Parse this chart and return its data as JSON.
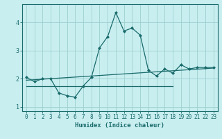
{
  "xlabel": "Humidex (Indice chaleur)",
  "bg_color": "#c8eef0",
  "grid_color": "#9ecfcf",
  "line_color": "#1a6b6b",
  "xlim": [
    -0.5,
    23.5
  ],
  "ylim": [
    0.85,
    4.65
  ],
  "xticks": [
    0,
    1,
    2,
    3,
    4,
    5,
    6,
    7,
    8,
    9,
    10,
    11,
    12,
    13,
    14,
    15,
    16,
    17,
    18,
    19,
    20,
    21,
    22,
    23
  ],
  "yticks": [
    1,
    2,
    3,
    4
  ],
  "line1_x": [
    0,
    1,
    2,
    3,
    4,
    5,
    6,
    7,
    8,
    9,
    10,
    11,
    12,
    13,
    14,
    15,
    16,
    17,
    18,
    19,
    20,
    21,
    22,
    23
  ],
  "line1_y": [
    2.05,
    1.9,
    2.0,
    2.0,
    1.5,
    1.4,
    1.35,
    1.75,
    2.05,
    3.1,
    3.5,
    4.35,
    3.7,
    3.8,
    3.55,
    2.3,
    2.1,
    2.35,
    2.2,
    2.5,
    2.35,
    2.4,
    2.4,
    2.4
  ],
  "line2_x": [
    0,
    18
  ],
  "line2_y": [
    1.75,
    1.75
  ],
  "line3_x": [
    0,
    23
  ],
  "line3_y": [
    1.95,
    2.38
  ]
}
